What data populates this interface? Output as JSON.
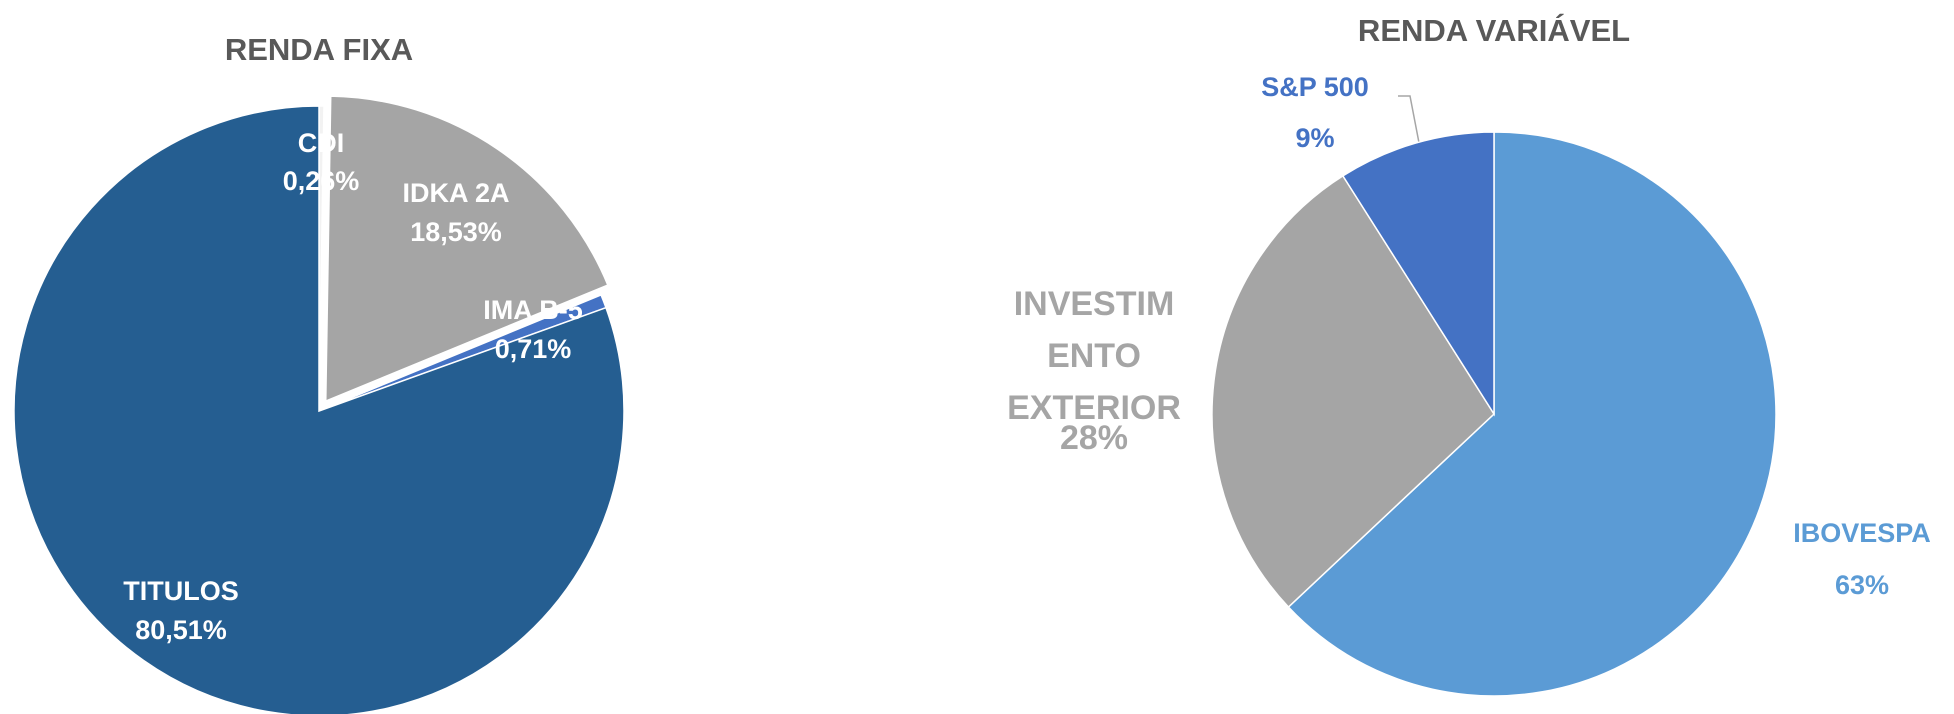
{
  "chart_data": [
    {
      "type": "pie",
      "title": "RENDA FIXA",
      "categories": [
        "CDI",
        "IDKA 2A",
        "IMA B-5",
        "TITULOS"
      ],
      "values": [
        0.26,
        18.53,
        0.71,
        80.51
      ],
      "value_labels": [
        "0,26%",
        "18,53%",
        "0,71%",
        "80,51%"
      ],
      "colors": [
        "#f2f2f2",
        "#a5a5a5",
        "#4472c4",
        "#255e91"
      ]
    },
    {
      "type": "pie",
      "title": "RENDA VARIÁVEL",
      "categories": [
        "IBOVESPA",
        "INVESTIMENTO EXTERIOR",
        "S&P 500"
      ],
      "values": [
        63,
        28,
        9
      ],
      "value_labels": [
        "63%",
        "28%",
        "9%"
      ],
      "colors": [
        "#5b9bd5",
        "#a5a5a5",
        "#4472c4"
      ]
    }
  ]
}
